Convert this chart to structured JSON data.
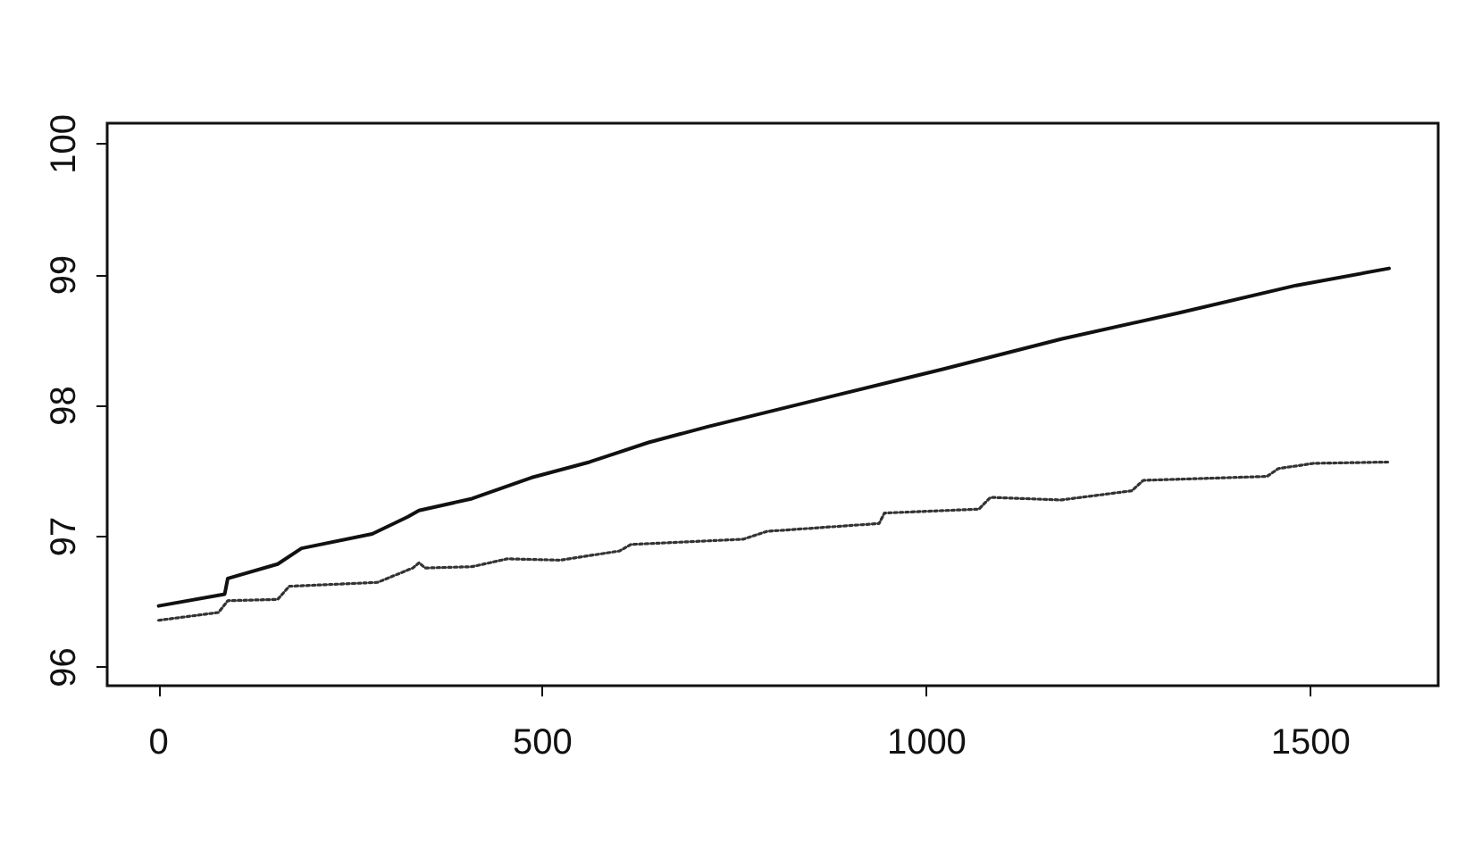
{
  "chart_data": {
    "type": "line",
    "xlim": [
      -67,
      1666
    ],
    "ylim": [
      95.86,
      100.16
    ],
    "xticks": [
      0,
      500,
      1000,
      1500
    ],
    "yticks": [
      96,
      97,
      98,
      99,
      100
    ],
    "grid": false,
    "marker": "none",
    "series": [
      {
        "color": "#111111",
        "line_style": "solid",
        "x": [
          0,
          86,
          90,
          155,
          186,
          278,
          324,
          339,
          408,
          485,
          561,
          638,
          715,
          868,
          1021,
          1175,
          1328,
          1481,
          1602
        ],
        "values": [
          96.47,
          96.56,
          96.68,
          96.79,
          96.91,
          97.02,
          97.15,
          97.2,
          97.29,
          97.45,
          97.57,
          97.72,
          97.84,
          98.06,
          98.28,
          98.51,
          98.71,
          98.92,
          99.05
        ]
      },
      {
        "color": "#333333",
        "line_style": "dotted",
        "x": [
          0,
          78,
          90,
          155,
          170,
          285,
          331,
          339,
          347,
          408,
          454,
          523,
          600,
          615,
          761,
          792,
          938,
          945,
          1068,
          1083,
          1175,
          1267,
          1282,
          1443,
          1458,
          1504,
          1602
        ],
        "values": [
          96.36,
          96.42,
          96.51,
          96.52,
          96.62,
          96.65,
          96.76,
          96.8,
          96.76,
          96.77,
          96.83,
          96.82,
          96.89,
          96.94,
          96.98,
          97.04,
          97.1,
          97.18,
          97.21,
          97.3,
          97.28,
          97.35,
          97.43,
          97.46,
          97.52,
          97.56,
          97.57
        ]
      }
    ]
  }
}
